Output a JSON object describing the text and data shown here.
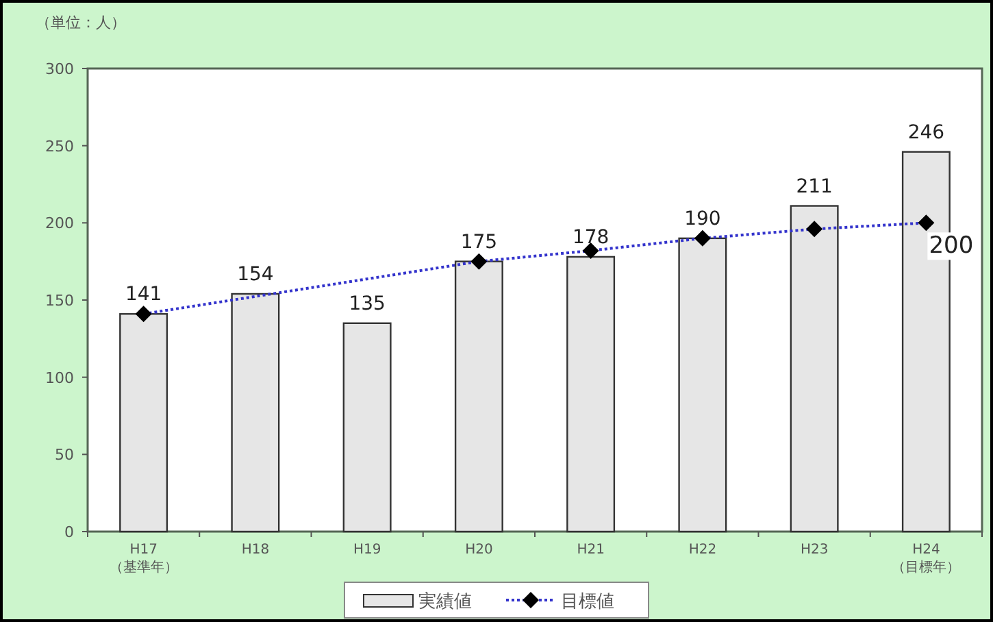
{
  "chart_data": {
    "type": "bar",
    "ylabel": "（単位：人）",
    "categories": [
      "H17\n（基準年）",
      "H18",
      "H19",
      "H20",
      "H21",
      "H22",
      "H23",
      "H24\n（目標年）"
    ],
    "series": [
      {
        "name": "実績値",
        "color": "#e6e6e6",
        "values": [
          141,
          154,
          135,
          175,
          178,
          190,
          211,
          246
        ]
      },
      {
        "name": "目標値",
        "type": "line",
        "color": "#3333cc",
        "marker": "diamond",
        "line_style": "dotted",
        "values": [
          141,
          null,
          null,
          175,
          182,
          190,
          196,
          200
        ],
        "value_labels": [
          null,
          null,
          null,
          null,
          null,
          null,
          null,
          "200"
        ]
      }
    ],
    "data_labels": true,
    "ylim": [
      0,
      300
    ],
    "yticks": [
      0,
      50,
      100,
      150,
      200,
      250,
      300
    ],
    "grid": false,
    "legend": "bottom"
  }
}
